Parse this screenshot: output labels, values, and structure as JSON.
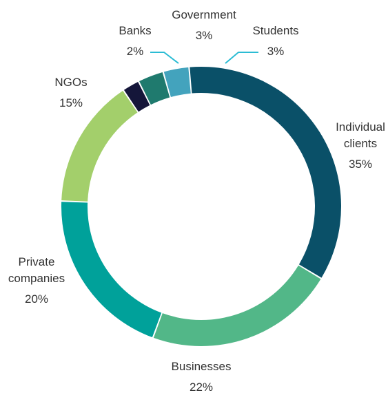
{
  "chart_data": {
    "type": "pie",
    "title": "",
    "categories": [
      "Individual clients",
      "Businesses",
      "Private companies",
      "NGOs",
      "Banks",
      "Government",
      "Students"
    ],
    "values": [
      35,
      22,
      20,
      15,
      2,
      3,
      3
    ],
    "value_labels": [
      "35%",
      "22%",
      "20%",
      "15%",
      "2%",
      "3%",
      "3%"
    ],
    "label_lines": [
      [
        "Individual",
        "clients"
      ],
      [
        "Businesses"
      ],
      [
        "Private",
        "companies"
      ],
      [
        "NGOs"
      ],
      [
        "Banks"
      ],
      [
        "Government"
      ],
      [
        "Students"
      ]
    ],
    "colors": [
      "#0a5068",
      "#52b788",
      "#00a19a",
      "#a3cf6b",
      "#15163a",
      "#1f7a6e",
      "#43a3bd"
    ],
    "leader_color": "#2bbcd4",
    "legend": "none",
    "style": "donut"
  }
}
